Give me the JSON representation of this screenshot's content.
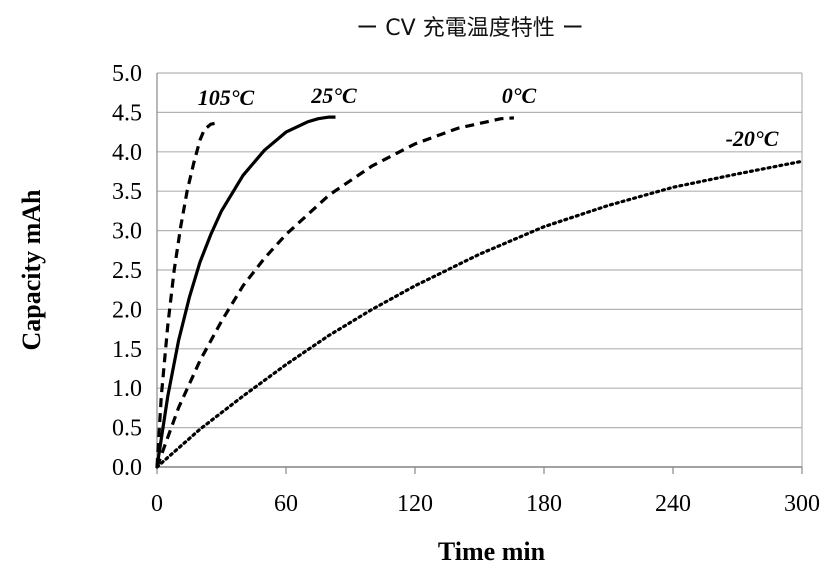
{
  "chart_data": {
    "type": "line",
    "title": "ー CV 充電温度特性 ー",
    "xlabel": "Time min",
    "ylabel": "Capacity mAh",
    "xlim": [
      0,
      300
    ],
    "ylim": [
      0,
      5.0
    ],
    "x_ticks": [
      "0",
      "60",
      "120",
      "180",
      "240",
      "300"
    ],
    "y_ticks": [
      "0.0",
      "0.5",
      "1.0",
      "1.5",
      "2.0",
      "2.5",
      "3.0",
      "3.5",
      "4.0",
      "4.5",
      "5.0"
    ],
    "grid": "horizontal",
    "series": [
      {
        "name": "105°C",
        "style": "dashed",
        "color": "#000000",
        "x": [
          0,
          2,
          5,
          8,
          11,
          14,
          17,
          20,
          22,
          25,
          29
        ],
        "y": [
          0,
          0.9,
          1.8,
          2.5,
          3.05,
          3.5,
          3.85,
          4.15,
          4.28,
          4.35,
          4.37
        ]
      },
      {
        "name": "25°C",
        "style": "solid",
        "color": "#000000",
        "x": [
          0,
          5,
          10,
          15,
          20,
          25,
          30,
          40,
          50,
          60,
          70,
          75,
          80,
          83
        ],
        "y": [
          0,
          0.9,
          1.6,
          2.15,
          2.6,
          2.95,
          3.25,
          3.7,
          4.02,
          4.25,
          4.38,
          4.42,
          4.44,
          4.44
        ]
      },
      {
        "name": "0°C",
        "style": "dashed",
        "color": "#000000",
        "x": [
          0,
          10,
          20,
          30,
          40,
          50,
          60,
          80,
          100,
          120,
          140,
          160,
          166
        ],
        "y": [
          0,
          0.75,
          1.35,
          1.85,
          2.3,
          2.65,
          2.95,
          3.45,
          3.82,
          4.1,
          4.3,
          4.42,
          4.43
        ]
      },
      {
        "name": "-20°C",
        "style": "dotted",
        "color": "#000000",
        "x": [
          0,
          20,
          40,
          60,
          80,
          100,
          120,
          150,
          180,
          210,
          240,
          270,
          300
        ],
        "y": [
          0,
          0.48,
          0.9,
          1.3,
          1.67,
          2.0,
          2.3,
          2.7,
          3.05,
          3.32,
          3.55,
          3.72,
          3.88
        ]
      }
    ],
    "series_label_text": [
      "105°C",
      "25°C",
      "0°C",
      "-20°C"
    ]
  }
}
